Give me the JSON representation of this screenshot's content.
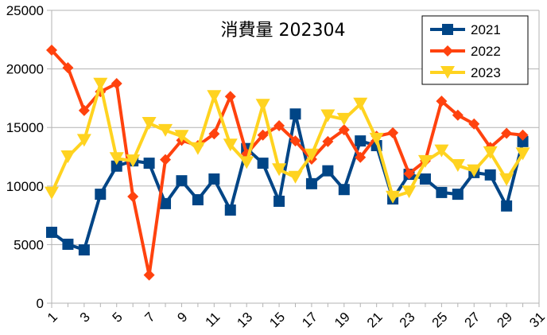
{
  "chart_data": {
    "type": "line",
    "title": "消費量 202304",
    "xlabel": "",
    "ylabel": "",
    "x": [
      1,
      2,
      3,
      4,
      5,
      6,
      7,
      8,
      9,
      10,
      11,
      12,
      13,
      14,
      15,
      16,
      17,
      18,
      19,
      20,
      21,
      22,
      23,
      24,
      25,
      26,
      27,
      28,
      29,
      30
    ],
    "xticks": [
      "1",
      "3",
      "5",
      "7",
      "9",
      "11",
      "13",
      "15",
      "17",
      "19",
      "21",
      "23",
      "25",
      "27",
      "29",
      "31"
    ],
    "ylim": [
      0,
      25000
    ],
    "yticks": [
      "0",
      "5000",
      "10000",
      "15000",
      "20000",
      "25000"
    ],
    "grid": "horizontal",
    "legend": "top-right",
    "series": [
      {
        "name": "2021",
        "color": "#004586",
        "marker": "square",
        "values": [
          6050,
          5030,
          4550,
          9300,
          11700,
          12150,
          11950,
          8500,
          10450,
          8830,
          10600,
          7950,
          13200,
          11950,
          8700,
          16150,
          10200,
          11300,
          9700,
          13850,
          13450,
          8900,
          11000,
          10600,
          9450,
          9300,
          11150,
          10950,
          8300,
          13800
        ]
      },
      {
        "name": "2022",
        "color": "#ff420e",
        "marker": "diamond",
        "values": [
          21600,
          20100,
          16450,
          18050,
          18750,
          9100,
          2400,
          12250,
          13900,
          13450,
          14450,
          17650,
          12750,
          14350,
          15150,
          13850,
          12300,
          13800,
          14800,
          12450,
          14250,
          14550,
          11050,
          12150,
          17250,
          16050,
          15300,
          13300,
          14500,
          14350
        ]
      },
      {
        "name": "2023",
        "color": "#ffd320",
        "marker": "triangle-down",
        "values": [
          9400,
          12500,
          13900,
          18700,
          12350,
          12150,
          15350,
          14750,
          14250,
          13200,
          17650,
          13500,
          12000,
          16900,
          11400,
          10750,
          12650,
          16000,
          15700,
          17000,
          14000,
          9050,
          9500,
          12100,
          13000,
          11750,
          11300,
          12850,
          10550,
          12750
        ]
      }
    ]
  }
}
